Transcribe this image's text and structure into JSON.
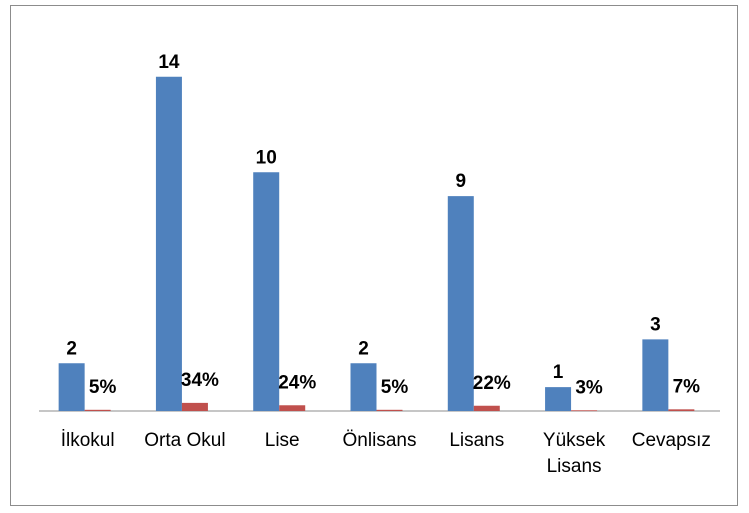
{
  "chart_data": {
    "type": "bar",
    "categories": [
      "İlkokul",
      "Orta Okul",
      "Lise",
      "Önlisans",
      "Lisans",
      "Yüksek Lisans",
      "Cevapsız"
    ],
    "series": [
      {
        "color": "#4f81bd",
        "values": [
          2,
          14,
          10,
          2,
          9,
          1,
          3
        ]
      },
      {
        "color": "#c0504d",
        "values": [
          0.05,
          0.34,
          0.24,
          0.05,
          0.22,
          0.03,
          0.07
        ],
        "value_labels": [
          "5%",
          "34%",
          "24%",
          "5%",
          "22%",
          "3%",
          "7%"
        ]
      }
    ],
    "ylim": [
      0,
      16
    ]
  }
}
